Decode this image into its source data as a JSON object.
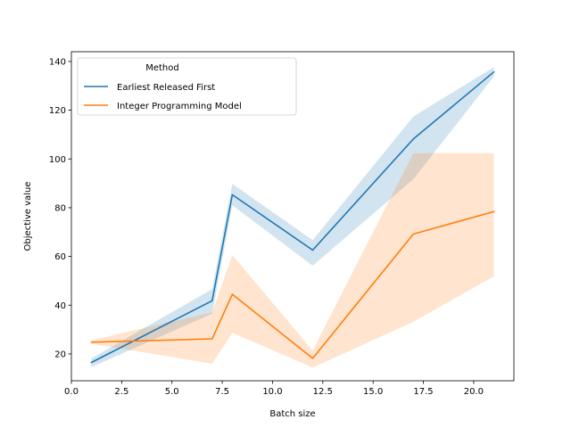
{
  "chart_data": {
    "type": "line",
    "xlabel": "Batch size",
    "ylabel": "Objective value",
    "xlim": [
      0,
      22.0
    ],
    "ylim": [
      9,
      144
    ],
    "xticks": [
      0.0,
      2.5,
      5.0,
      7.5,
      10.0,
      12.5,
      15.0,
      17.5,
      20.0
    ],
    "xtick_labels": [
      "0.0",
      "2.5",
      "5.0",
      "7.5",
      "10.0",
      "12.5",
      "15.0",
      "17.5",
      "20.0"
    ],
    "yticks": [
      20,
      40,
      60,
      80,
      100,
      120,
      140
    ],
    "ytick_labels": [
      "20",
      "40",
      "60",
      "80",
      "100",
      "120",
      "140"
    ],
    "grid": false,
    "legend": {
      "title": "Method",
      "placement": "upper-left"
    },
    "series": [
      {
        "name": "Earliest Released First",
        "color": "#1f77b4",
        "x": [
          1,
          7,
          8,
          12,
          17,
          21
        ],
        "y": [
          16.5,
          41.8,
          85.3,
          62.6,
          108.2,
          135.7
        ],
        "ci_lower": [
          14.6,
          36.5,
          81.0,
          56.2,
          91.7,
          133.8
        ],
        "ci_upper": [
          18.2,
          46.6,
          89.8,
          66.7,
          117.4,
          137.7
        ]
      },
      {
        "name": "Integer Programming Model",
        "color": "#ff7f0e",
        "x": [
          1,
          7,
          8,
          12,
          17,
          21
        ],
        "y": [
          24.8,
          26.2,
          44.5,
          18.2,
          69.2,
          78.4
        ],
        "ci_lower": [
          24.2,
          16.0,
          28.7,
          14.4,
          33.2,
          51.8
        ],
        "ci_upper": [
          25.6,
          37.1,
          60.6,
          21.4,
          102.4,
          102.4
        ]
      }
    ]
  }
}
